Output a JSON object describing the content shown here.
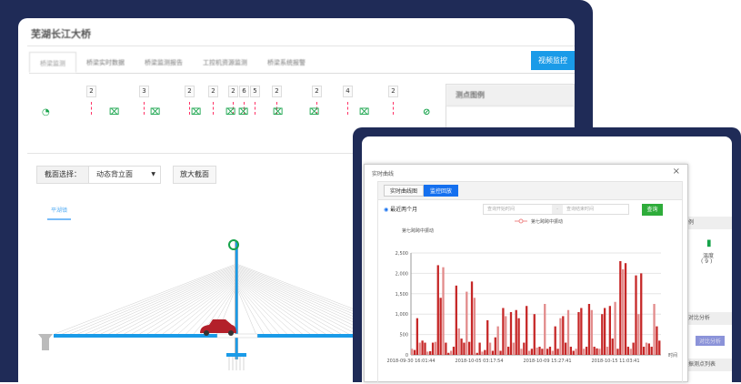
{
  "app": {
    "title": "芜湖长江大桥",
    "tabs": [
      "桥梁监测",
      "桥梁实时数据",
      "桥梁监测报告",
      "工控机资源监测",
      "桥梁系统报警"
    ],
    "video_button": "视频监控"
  },
  "sensors": [
    "2",
    "3",
    "2",
    "2",
    "2",
    "6",
    "5",
    "2",
    "2",
    "4",
    "2"
  ],
  "legend": {
    "title": "测点图例"
  },
  "section": {
    "label": "截面选择：",
    "value": "动态背立面",
    "zoom_button": "放大截面",
    "direction": "平湖镇"
  },
  "modal": {
    "title": "实时曲线",
    "tabs": [
      "实时曲线图",
      "监控回放"
    ],
    "radio": "最近两个月",
    "start_placeholder": "查询开始时间",
    "end_placeholder": "查询结束时间",
    "query_button": "查询"
  },
  "side": {
    "legend_frag": "例",
    "temp_label": "温度",
    "temp_count": "( 9 )",
    "compare_header": "对比分析",
    "compare_button": "对比分析",
    "list_header": "振测点列表"
  },
  "colors": {
    "accent": "#1a9be8",
    "navy": "#1f2b57",
    "bar": "#c62828",
    "sensor": "#16a34a"
  },
  "chart_data": {
    "type": "bar",
    "series": [
      {
        "name": "第七跨跨中振动"
      }
    ],
    "ylabel": "第七跨跨中振动",
    "xlabel": "时间",
    "ylim": [
      0,
      2500
    ],
    "yticks": [
      "0",
      "500",
      "1,000",
      "1,500",
      "2,000",
      "2,500"
    ],
    "xticks": [
      "2018-09-30 16:01:44",
      "2018-10-05 03:17:54",
      "2018-10-09 15:27:41",
      "2018-10-15 11:03:41"
    ],
    "values": [
      150,
      120,
      900,
      300,
      350,
      300,
      80,
      90,
      300,
      320,
      2200,
      1400,
      2150,
      300,
      50,
      100,
      200,
      1700,
      650,
      400,
      300,
      1550,
      320,
      1800,
      1400,
      50,
      300,
      80,
      120,
      850,
      300,
      100,
      430,
      700,
      100,
      1150,
      950,
      200,
      1050,
      300,
      1100,
      900,
      150,
      300,
      1200,
      100,
      150,
      1000,
      180,
      200,
      150,
      1250,
      150,
      200,
      100,
      700,
      150,
      900,
      950,
      300,
      1100,
      200,
      100,
      150,
      1050,
      1150,
      150,
      200,
      1250,
      1100,
      200,
      160,
      150,
      1000,
      1150,
      200,
      1200,
      400,
      1300,
      150,
      2300,
      2100,
      2250,
      200,
      150,
      300,
      1950,
      1000,
      2000,
      200,
      300,
      280,
      200,
      1250,
      700,
      350
    ]
  }
}
